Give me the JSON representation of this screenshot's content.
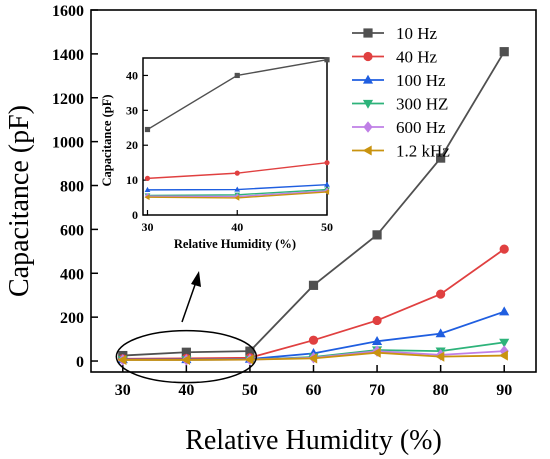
{
  "chart_data": [
    {
      "type": "line",
      "xlabel": "Relative Humidity (%)",
      "ylabel": "Capacitance (pF)",
      "xlim": [
        25,
        95
      ],
      "ylim": [
        -50,
        1600
      ],
      "xticks": [
        30,
        40,
        50,
        60,
        70,
        80,
        90
      ],
      "yticks": [
        0,
        200,
        400,
        600,
        800,
        1000,
        1200,
        1400,
        1600
      ],
      "x": [
        30,
        40,
        50,
        60,
        70,
        80,
        90
      ],
      "legend_position": "top-right",
      "series": [
        {
          "name": "10 Hz",
          "color": "#505050",
          "marker": "square",
          "values": [
            25,
            40,
            45,
            345,
            575,
            925,
            1410
          ]
        },
        {
          "name": "40 Hz",
          "color": "#e04040",
          "marker": "circle",
          "values": [
            10,
            12,
            15,
            95,
            185,
            305,
            510
          ]
        },
        {
          "name": "100 Hz",
          "color": "#1f5ee0",
          "marker": "triangle-up",
          "values": [
            7,
            7,
            9,
            35,
            90,
            125,
            225
          ]
        },
        {
          "name": "300 HZ",
          "color": "#2db37a",
          "marker": "triangle-down",
          "values": [
            5.5,
            5.5,
            7,
            18,
            50,
            45,
            85
          ]
        },
        {
          "name": "600 Hz",
          "color": "#bf7fe6",
          "marker": "diamond",
          "values": [
            5.5,
            5.3,
            6.8,
            15,
            45,
            28,
            45
          ]
        },
        {
          "name": "1.2 kHz",
          "color": "#c9930f",
          "marker": "triangle-left",
          "values": [
            5,
            5,
            6.5,
            12,
            38,
            20,
            25
          ]
        }
      ]
    },
    {
      "type": "line",
      "xlabel": "Relative Humidity (%)",
      "ylabel": "Capacitance (pF)",
      "xlim": [
        29.5,
        50
      ],
      "ylim": [
        0,
        45
      ],
      "xticks": [
        30,
        40,
        50
      ],
      "yticks": [
        0,
        10,
        20,
        30,
        40
      ],
      "x": [
        30,
        40,
        50
      ],
      "series": [
        {
          "name": "10 Hz",
          "color": "#505050",
          "marker": "square",
          "values": [
            24.5,
            40,
            44.5
          ]
        },
        {
          "name": "40 Hz",
          "color": "#e04040",
          "marker": "circle",
          "values": [
            10.5,
            12,
            15
          ]
        },
        {
          "name": "100 Hz",
          "color": "#1f5ee0",
          "marker": "triangle-up",
          "values": [
            7.2,
            7.3,
            8.7
          ]
        },
        {
          "name": "300 HZ",
          "color": "#2db37a",
          "marker": "triangle-down",
          "values": [
            5.6,
            5.8,
            7.3
          ]
        },
        {
          "name": "600 Hz",
          "color": "#bf7fe6",
          "marker": "diamond",
          "values": [
            5.4,
            5.3,
            6.9
          ]
        },
        {
          "name": "1.2 kHz",
          "color": "#c9930f",
          "marker": "triangle-left",
          "values": [
            5.1,
            4.9,
            6.6
          ]
        }
      ]
    }
  ]
}
